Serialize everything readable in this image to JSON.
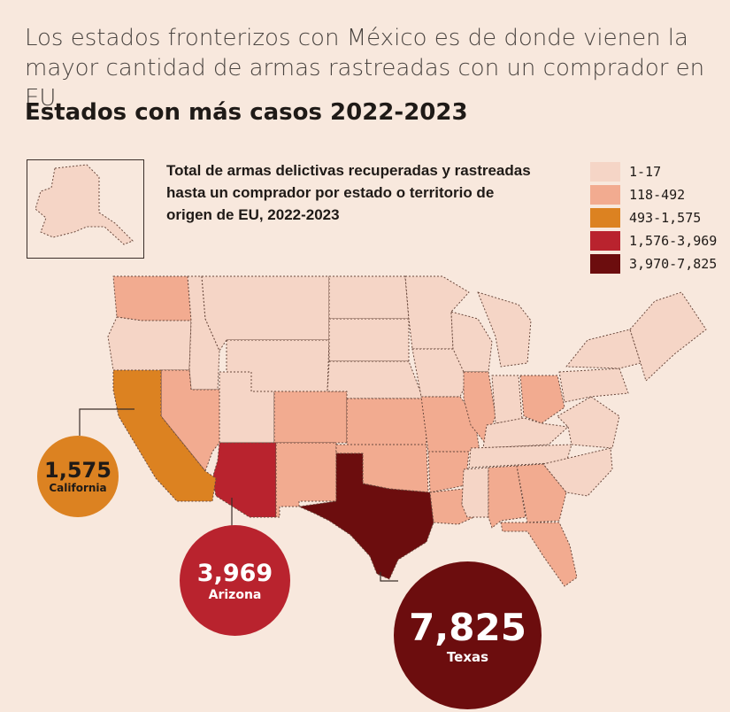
{
  "headline": "Los estados fronterizos con México es de donde vienen la mayor cantidad de armas rastreadas con un comprador en EU.",
  "subtitle": "Estados con más casos 2022-2023",
  "description": "Total de armas delictivas recuperadas y rastreadas hasta un comprador por estado o territorio de origen de EU, 2022-2023",
  "legend": [
    {
      "label": "1-17",
      "color": "#f5d5c6"
    },
    {
      "label": "118-492",
      "color": "#f2ab90"
    },
    {
      "label": "493-1,575",
      "color": "#dc8221"
    },
    {
      "label": "1,576-3,969",
      "color": "#b9232e"
    },
    {
      "label": "3,970-7,825",
      "color": "#6c0d0e"
    }
  ],
  "callouts": {
    "california": {
      "value": "1,575",
      "state": "California"
    },
    "arizona": {
      "value": "3,969",
      "state": "Arizona"
    },
    "texas": {
      "value": "7,825",
      "state": "Texas"
    }
  },
  "state_classes": {
    "light": [
      "Washington (lighter)",
      "Oregon",
      "Idaho",
      "Montana",
      "Wyoming",
      "Utah",
      "North Dakota",
      "South Dakota",
      "Nebraska",
      "Minnesota",
      "Iowa",
      "Wisconsin",
      "Michigan",
      "Indiana",
      "Kentucky",
      "Mississippi",
      "West Virginia",
      "Virginia",
      "Pennsylvania",
      "New York",
      "New England"
    ],
    "medium": [
      "Washington",
      "Nevada",
      "Colorado",
      "New Mexico",
      "Kansas",
      "Oklahoma",
      "Missouri",
      "Arkansas",
      "Louisiana",
      "Illinois",
      "Ohio",
      "Tennessee",
      "Alabama",
      "Georgia",
      "Florida",
      "Carolinas"
    ],
    "orange": [
      "California"
    ],
    "red": [
      "Arizona"
    ],
    "darkred": [
      "Texas"
    ]
  }
}
